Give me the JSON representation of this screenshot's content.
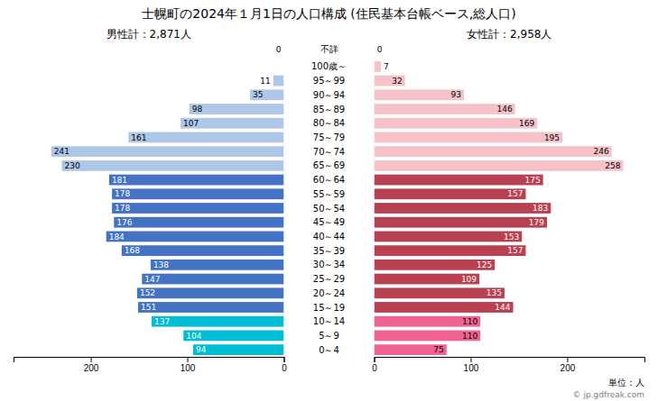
{
  "chart_data": {
    "type": "bar",
    "orientation": "horizontal",
    "title": "士幌町の2024年１月1日の人口構成 (住民基本台帳ベース,総人口)",
    "categories": [
      "100歳～",
      "95～99",
      "90～94",
      "85～89",
      "80～84",
      "75～79",
      "70～74",
      "65～69",
      "60～64",
      "55～59",
      "50～54",
      "45～49",
      "40～44",
      "35～39",
      "30～34",
      "25～29",
      "20～24",
      "15～19",
      "10～14",
      "5～9",
      "0～4"
    ],
    "series": [
      {
        "name": "男性計：2,871人",
        "values": [
          0,
          11,
          35,
          98,
          107,
          161,
          241,
          230,
          181,
          178,
          178,
          176,
          184,
          168,
          138,
          147,
          152,
          151,
          137,
          104,
          94
        ],
        "value_labels": [
          null,
          "11",
          "35",
          "98",
          "107",
          "161",
          "241",
          "230",
          "181",
          "178",
          "178",
          "176",
          "184",
          "168",
          "138",
          "147",
          "152",
          "151",
          "137",
          "104",
          "94"
        ],
        "unknown": 0,
        "colors": [
          "#aec6e8",
          "#aec6e8",
          "#aec6e8",
          "#aec6e8",
          "#aec6e8",
          "#aec6e8",
          "#aec6e8",
          "#aec6e8",
          "#4472c4",
          "#4472c4",
          "#4472c4",
          "#4472c4",
          "#4472c4",
          "#4472c4",
          "#4472c4",
          "#4472c4",
          "#4472c4",
          "#4472c4",
          "#00bcd4",
          "#00bcd4",
          "#00bcd4"
        ]
      },
      {
        "name": "女性計：2,958人",
        "values": [
          7,
          32,
          93,
          146,
          169,
          195,
          246,
          258,
          175,
          157,
          183,
          179,
          153,
          157,
          125,
          109,
          135,
          144,
          110,
          110,
          75
        ],
        "unknown": 0,
        "colors": [
          "#f4c2c8",
          "#f4c2c8",
          "#f4c2c8",
          "#f4c2c8",
          "#f4c2c8",
          "#f4c2c8",
          "#f4c2c8",
          "#f4c2c8",
          "#b94050",
          "#b94050",
          "#b94050",
          "#b94050",
          "#b94050",
          "#b94050",
          "#b94050",
          "#b94050",
          "#b94050",
          "#b94050",
          "#f06292",
          "#f06292",
          "#f06292"
        ]
      }
    ],
    "unknown_label": "不詳",
    "xlim": [
      0,
      280
    ],
    "xticks": [
      0,
      100,
      200
    ],
    "data_labels": true,
    "grid": false,
    "annotations": [
      "単位：人",
      "© jp.gdfreak.com"
    ]
  }
}
